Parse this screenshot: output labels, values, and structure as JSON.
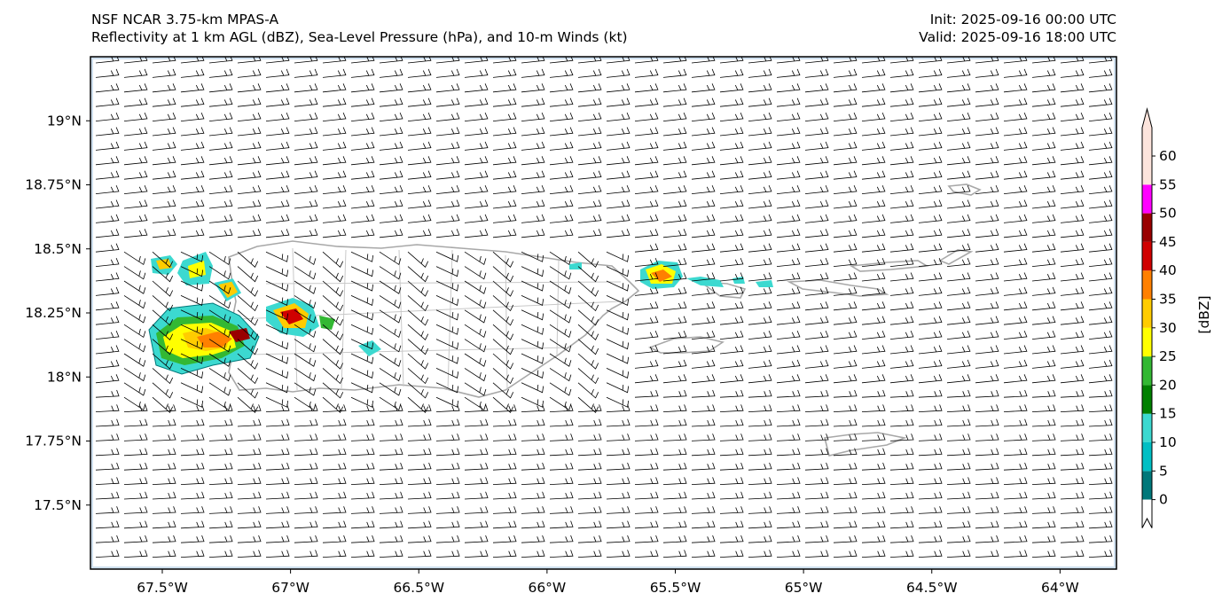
{
  "header": {
    "title_line1": "NSF NCAR 3.75-km MPAS-A",
    "title_line2": "Reflectivity at 1 km AGL (dBZ), Sea-Level Pressure (hPa), and 10-m Winds (kt)",
    "init": "Init: 2025-09-16 00:00 UTC",
    "valid": "Valid: 2025-09-16 18:00 UTC"
  },
  "map": {
    "lon_range": [
      -67.78,
      -63.78
    ],
    "lat_range": [
      17.25,
      19.25
    ],
    "lon_ticks": [
      {
        "value": -67.5,
        "label": "67.5°W"
      },
      {
        "value": -67.0,
        "label": "67°W"
      },
      {
        "value": -66.5,
        "label": "66.5°W"
      },
      {
        "value": -66.0,
        "label": "66°W"
      },
      {
        "value": -65.5,
        "label": "65.5°W"
      },
      {
        "value": -65.0,
        "label": "65°W"
      },
      {
        "value": -64.5,
        "label": "64.5°W"
      },
      {
        "value": -64.0,
        "label": "64°W"
      }
    ],
    "lat_ticks": [
      {
        "value": 19.0,
        "label": "19°N"
      },
      {
        "value": 18.75,
        "label": "18.75°N"
      },
      {
        "value": 18.5,
        "label": "18.5°N"
      },
      {
        "value": 18.25,
        "label": "18.25°N"
      },
      {
        "value": 18.0,
        "label": "18°N"
      },
      {
        "value": 17.75,
        "label": "17.75°N"
      },
      {
        "value": 17.5,
        "label": "17.5°N"
      }
    ]
  },
  "colorbar": {
    "label": "[dBZ]",
    "levels": [
      {
        "value": "0",
        "color": "#00787a"
      },
      {
        "value": "5",
        "color": "#00bfc4"
      },
      {
        "value": "10",
        "color": "#3cd9d0"
      },
      {
        "value": "15",
        "color": "#008000"
      },
      {
        "value": "20",
        "color": "#33b833"
      },
      {
        "value": "25",
        "color": "#ffff00"
      },
      {
        "value": "30",
        "color": "#ffcc00"
      },
      {
        "value": "35",
        "color": "#ff8000"
      },
      {
        "value": "40",
        "color": "#d00000"
      },
      {
        "value": "45",
        "color": "#990000"
      },
      {
        "value": "50",
        "color": "#ff00ff"
      },
      {
        "value": "55",
        "color": "#fce4dc"
      },
      {
        "value": "60",
        "color": ""
      }
    ],
    "extend_top_color": "#fce4dc",
    "extend_bottom_color": "#ffffff"
  },
  "colors": {
    "ocean_frame": "#cfe0ef",
    "coastline": "#a8a8a8",
    "barb": "#000000"
  }
}
